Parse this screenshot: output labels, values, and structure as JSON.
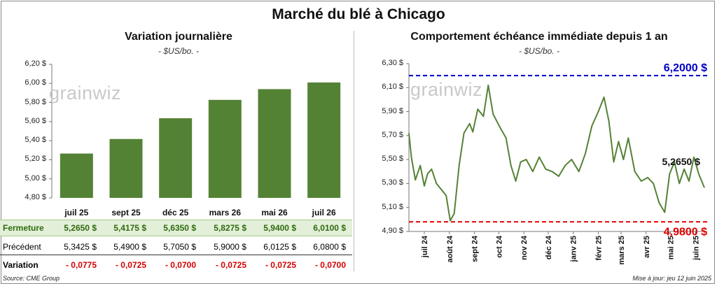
{
  "title": "Marché du blé à Chicago",
  "left": {
    "title": "Variation journalière",
    "units": "- $US/bo. -",
    "logo": "grainwiz",
    "y_ticks": [
      "6,20 $",
      "6,00 $",
      "5,80 $",
      "5,60 $",
      "5,40 $",
      "5,20 $",
      "5,00 $",
      "4,80 $"
    ],
    "table": {
      "row1_label": "Fermeture",
      "row2_label": "Précédent",
      "row3_label": "Variation",
      "fermeture": [
        "5,2650 $",
        "5,4175 $",
        "5,6350 $",
        "5,8275 $",
        "5,9400 $",
        "6,0100 $"
      ],
      "precedent": [
        "5,3425 $",
        "5,4900 $",
        "5,7050 $",
        "5,9000 $",
        "6,0125 $",
        "6,0800 $"
      ],
      "variation": [
        "- 0,0775",
        "- 0,0725",
        "- 0,0700",
        "- 0,0725",
        "- 0,0725",
        "- 0,0700"
      ]
    }
  },
  "right": {
    "title": "Comportement échéance immédiate depuis 1 an",
    "units": "- $US/bo. -",
    "logo": "grainwiz",
    "y_ticks": [
      "6,30 $",
      "6,10 $",
      "5,90 $",
      "5,70 $",
      "5,50 $",
      "5,30 $",
      "5,10 $",
      "4,90 $"
    ],
    "x_ticks": [
      "juil 24",
      "août 24",
      "sept 24",
      "oct 24",
      "nov 24",
      "déc 24",
      "janv 25",
      "févr 25",
      "mars 25",
      "avr 25",
      "mai 25",
      "juin 25"
    ],
    "high_label": "6,2000 $",
    "low_label": "4,9800 $",
    "last_label": "5,2650 $"
  },
  "chart_data": [
    {
      "type": "bar",
      "title": "Variation journalière",
      "ylabel": "$US/bo.",
      "categories": [
        "juil 25",
        "sept 25",
        "déc 25",
        "mars 26",
        "mai 26",
        "juil 26"
      ],
      "values": [
        5.265,
        5.4175,
        5.635,
        5.8275,
        5.94,
        6.01
      ],
      "ylim": [
        4.8,
        6.2
      ],
      "color": "#548235"
    },
    {
      "type": "line",
      "title": "Comportement échéance immédiate depuis 1 an",
      "ylabel": "$US/bo.",
      "ylim": [
        4.9,
        6.3
      ],
      "reference_lines": [
        {
          "value": 6.2,
          "color": "#0000c8"
        },
        {
          "value": 4.98,
          "color": "#e00000"
        }
      ],
      "series": [
        {
          "color": "#548235",
          "x": [
            "2024-06-12",
            "2024-06-15",
            "2024-06-20",
            "2024-06-26",
            "2024-07-01",
            "2024-07-05",
            "2024-07-10",
            "2024-07-16",
            "2024-07-22",
            "2024-07-28",
            "2024-08-02",
            "2024-08-07",
            "2024-08-13",
            "2024-08-19",
            "2024-08-26",
            "2024-08-30",
            "2024-09-05",
            "2024-09-12",
            "2024-09-18",
            "2024-09-24",
            "2024-09-30",
            "2024-10-04",
            "2024-10-10",
            "2024-10-16",
            "2024-10-22",
            "2024-10-28",
            "2024-11-04",
            "2024-11-12",
            "2024-11-20",
            "2024-11-28",
            "2024-12-06",
            "2024-12-14",
            "2024-12-22",
            "2024-12-30",
            "2025-01-08",
            "2025-01-16",
            "2025-01-24",
            "2025-02-01",
            "2025-02-08",
            "2025-02-14",
            "2025-02-20",
            "2025-02-26",
            "2025-03-04",
            "2025-03-10",
            "2025-03-18",
            "2025-03-26",
            "2025-04-03",
            "2025-04-10",
            "2025-04-17",
            "2025-04-24",
            "2025-04-30",
            "2025-05-06",
            "2025-05-12",
            "2025-05-18",
            "2025-05-24",
            "2025-05-30",
            "2025-06-05",
            "2025-06-12"
          ],
          "y": [
            5.72,
            5.52,
            5.33,
            5.45,
            5.28,
            5.38,
            5.42,
            5.3,
            5.25,
            5.2,
            4.99,
            5.05,
            5.45,
            5.72,
            5.8,
            5.73,
            5.92,
            5.86,
            6.12,
            5.88,
            5.8,
            5.75,
            5.68,
            5.45,
            5.32,
            5.48,
            5.5,
            5.4,
            5.52,
            5.42,
            5.4,
            5.36,
            5.45,
            5.5,
            5.4,
            5.55,
            5.78,
            5.9,
            6.02,
            5.82,
            5.48,
            5.65,
            5.5,
            5.68,
            5.4,
            5.32,
            5.35,
            5.3,
            5.14,
            5.06,
            5.38,
            5.48,
            5.3,
            5.42,
            5.32,
            5.52,
            5.38,
            5.265
          ]
        }
      ]
    }
  ]
}
